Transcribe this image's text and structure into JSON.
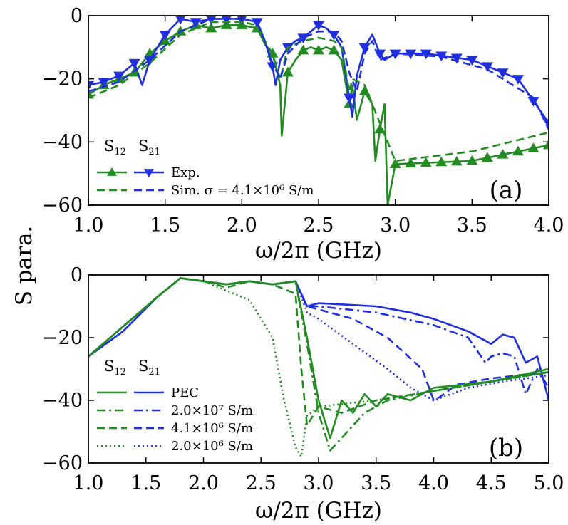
{
  "figure": {
    "ylabel": "S para.",
    "colors": {
      "s12": "#228B22",
      "s21": "#1f2fe0"
    }
  },
  "chart_data": [
    {
      "type": "line",
      "panel": "(a)",
      "xlabel": "ω/2π (GHz)",
      "xlim": [
        1.0,
        4.0
      ],
      "ylim": [
        -60,
        0
      ],
      "xticks": [
        "1.0",
        "1.5",
        "2.0",
        "2.5",
        "3.0",
        "3.5",
        "4.0"
      ],
      "yticks": [
        "0",
        "−20",
        "−40",
        "−60"
      ],
      "legend": {
        "col1": "S12",
        "col2": "S21",
        "rows": [
          {
            "label": "Exp.",
            "style": "solid-marker"
          },
          {
            "label": "Sim.  σ = 4.1×10⁶ S/m",
            "style": "dashed"
          }
        ]
      },
      "series": [
        {
          "name": "Exp.",
          "param": "S12",
          "color": "#228B22",
          "dash": "solid",
          "marker": "triangle-up",
          "x": [
            1.0,
            1.1,
            1.2,
            1.3,
            1.4,
            1.5,
            1.6,
            1.7,
            1.8,
            1.9,
            2.0,
            2.1,
            2.15,
            2.2,
            2.23,
            2.25,
            2.26,
            2.3,
            2.35,
            2.4,
            2.45,
            2.5,
            2.55,
            2.6,
            2.65,
            2.7,
            2.72,
            2.75,
            2.8,
            2.85,
            2.87,
            2.9,
            2.93,
            2.95,
            3.0,
            3.5,
            4.0
          ],
          "y": [
            -25,
            -22,
            -20,
            -18,
            -12,
            -8,
            -5,
            -3,
            -4,
            -3,
            -3,
            -4,
            -9,
            -12,
            -18,
            -22,
            -38,
            -18,
            -14,
            -11,
            -10,
            -11,
            -10,
            -11,
            -14,
            -28,
            -22,
            -33,
            -24,
            -28,
            -46,
            -36,
            -28,
            -60,
            -47,
            -46,
            -41
          ],
          "marker_x": [
            1.0,
            1.1,
            1.2,
            1.3,
            1.4,
            1.5,
            1.6,
            1.7,
            1.8,
            1.9,
            2.0,
            2.1,
            2.2,
            2.3,
            2.4,
            2.5,
            2.6,
            2.7,
            2.8,
            2.9,
            3.0,
            3.1,
            3.2,
            3.3,
            3.4,
            3.5,
            3.6,
            3.7,
            3.8,
            3.9,
            4.0
          ]
        },
        {
          "name": "Exp.",
          "param": "S21",
          "color": "#1f2fe0",
          "dash": "solid",
          "marker": "triangle-down",
          "x": [
            1.0,
            1.1,
            1.2,
            1.3,
            1.35,
            1.4,
            1.5,
            1.6,
            1.7,
            1.8,
            1.9,
            2.0,
            2.1,
            2.15,
            2.2,
            2.22,
            2.25,
            2.3,
            2.35,
            2.4,
            2.45,
            2.5,
            2.55,
            2.6,
            2.65,
            2.7,
            2.72,
            2.75,
            2.8,
            2.85,
            2.9,
            2.93,
            3.0,
            3.2,
            3.5,
            3.8,
            4.0
          ],
          "y": [
            -22,
            -21,
            -19,
            -15,
            -22,
            -14,
            -6,
            -1,
            -2,
            -1,
            -1,
            -1,
            -2,
            -8,
            -16,
            -22,
            -14,
            -10,
            -8,
            -7,
            -5,
            -3,
            -4,
            -6,
            -10,
            -26,
            -32,
            -19,
            -10,
            -6,
            -12,
            -14,
            -12,
            -12,
            -14,
            -20,
            -34
          ],
          "marker_x": [
            1.0,
            1.1,
            1.2,
            1.3,
            1.4,
            1.5,
            1.6,
            1.7,
            1.8,
            1.9,
            2.0,
            2.1,
            2.2,
            2.3,
            2.4,
            2.5,
            2.6,
            2.7,
            2.8,
            2.9,
            3.0,
            3.1,
            3.2,
            3.3,
            3.4,
            3.5,
            3.6,
            3.7,
            3.8,
            3.9,
            4.0
          ]
        },
        {
          "name": "Sim.",
          "param": "S12",
          "color": "#228B22",
          "dash": "dashed",
          "x": [
            1.0,
            1.2,
            1.4,
            1.6,
            1.8,
            2.0,
            2.1,
            2.15,
            2.2,
            2.25,
            2.3,
            2.4,
            2.5,
            2.6,
            2.65,
            2.7,
            2.72,
            2.8,
            2.85,
            2.9,
            2.95,
            3.0,
            3.5,
            4.0
          ],
          "y": [
            -26,
            -22,
            -15,
            -6,
            -2,
            -2,
            -3,
            -8,
            -12,
            -20,
            -10,
            -8,
            -7,
            -8,
            -10,
            -24,
            -20,
            -22,
            -28,
            -34,
            -40,
            -46,
            -43,
            -37
          ]
        },
        {
          "name": "Sim.",
          "param": "S21",
          "color": "#1f2fe0",
          "dash": "dashed",
          "x": [
            1.0,
            1.2,
            1.4,
            1.6,
            1.8,
            2.0,
            2.1,
            2.15,
            2.2,
            2.25,
            2.3,
            2.4,
            2.5,
            2.6,
            2.65,
            2.7,
            2.75,
            2.8,
            2.85,
            2.9,
            3.0,
            3.3,
            3.6,
            3.9,
            4.0
          ],
          "y": [
            -24,
            -21,
            -14,
            -5,
            -1,
            -1,
            -2,
            -8,
            -15,
            -20,
            -12,
            -7,
            -5,
            -5,
            -8,
            -18,
            -24,
            -12,
            -8,
            -14,
            -12,
            -13,
            -17,
            -26,
            -36
          ]
        }
      ]
    },
    {
      "type": "line",
      "panel": "(b)",
      "xlabel": "ω/2π (GHz)",
      "xlim": [
        1.0,
        5.0
      ],
      "ylim": [
        -60,
        0
      ],
      "xticks": [
        "1.0",
        "1.5",
        "2.0",
        "2.5",
        "3.0",
        "3.5",
        "4.0",
        "4.5",
        "5.0"
      ],
      "yticks": [
        "0",
        "−20",
        "−40",
        "−60"
      ],
      "legend": {
        "col1": "S12",
        "col2": "S21",
        "rows": [
          {
            "label": "PEC",
            "style": "solid"
          },
          {
            "label": "2.0×10⁷ S/m",
            "style": "dashdot"
          },
          {
            "label": "4.1×10⁶ S/m",
            "style": "dashed"
          },
          {
            "label": "2.0×10⁶ S/m",
            "style": "dotted"
          }
        ]
      },
      "series": [
        {
          "name": "PEC",
          "param": "S21",
          "color": "#1f2fe0",
          "dash": "solid",
          "x": [
            1.0,
            1.3,
            1.6,
            1.8,
            2.0,
            2.2,
            2.4,
            2.6,
            2.8,
            2.9,
            3.0,
            3.5,
            3.8,
            4.0,
            4.3,
            4.5,
            4.6,
            4.7,
            4.8,
            4.9,
            5.0
          ],
          "y": [
            -26,
            -18,
            -7,
            -1,
            -2,
            -3,
            -2,
            -3,
            -2,
            -10,
            -9,
            -10,
            -12,
            -14,
            -18,
            -22,
            -19,
            -20,
            -28,
            -26,
            -40
          ]
        },
        {
          "name": "2.0×10⁷ S/m",
          "param": "S21",
          "color": "#1f2fe0",
          "dash": "dashdot",
          "x": [
            1.0,
            1.6,
            1.8,
            2.0,
            2.2,
            2.4,
            2.6,
            2.8,
            2.9,
            3.0,
            3.5,
            4.0,
            4.3,
            4.45,
            4.5,
            4.6,
            4.7,
            4.8,
            4.9,
            5.0
          ],
          "y": [
            -26,
            -7,
            -1,
            -2,
            -3,
            -2,
            -3,
            -2,
            -10,
            -10,
            -12,
            -16,
            -20,
            -28,
            -26,
            -25,
            -26,
            -38,
            -30,
            -36
          ]
        },
        {
          "name": "4.1×10⁶ S/m",
          "param": "S21",
          "color": "#1f2fe0",
          "dash": "dashed",
          "x": [
            1.0,
            1.6,
            1.8,
            2.0,
            2.2,
            2.4,
            2.6,
            2.8,
            2.9,
            3.0,
            3.3,
            3.6,
            3.9,
            4.0,
            4.05,
            4.2,
            4.5,
            5.0
          ],
          "y": [
            -26,
            -7,
            -1,
            -2,
            -3,
            -2,
            -3,
            -2,
            -10,
            -11,
            -14,
            -20,
            -30,
            -40,
            -39,
            -35,
            -33,
            -31
          ]
        },
        {
          "name": "2.0×10⁶ S/m",
          "param": "S21",
          "color": "#1f2fe0",
          "dash": "dotted",
          "x": [
            1.0,
            1.6,
            1.8,
            2.0,
            2.2,
            2.4,
            2.6,
            2.8,
            2.9,
            3.0,
            3.3,
            3.6,
            3.8,
            4.0,
            4.3,
            4.6,
            5.0
          ],
          "y": [
            -26,
            -7,
            -1,
            -2,
            -3,
            -2,
            -3,
            -2,
            -12,
            -14,
            -22,
            -30,
            -36,
            -40,
            -36,
            -34,
            -32
          ]
        },
        {
          "name": "PEC",
          "param": "S12",
          "color": "#228B22",
          "dash": "solid",
          "x": [
            1.0,
            1.6,
            1.8,
            2.0,
            2.2,
            2.4,
            2.6,
            2.8,
            2.9,
            3.0,
            3.1,
            3.2,
            3.3,
            3.4,
            3.5,
            3.6,
            3.8,
            4.0,
            4.5,
            5.0
          ],
          "y": [
            -26,
            -7,
            -1,
            -2,
            -3,
            -2,
            -3,
            -2,
            -20,
            -40,
            -52,
            -40,
            -44,
            -38,
            -42,
            -38,
            -40,
            -36,
            -34,
            -30
          ]
        },
        {
          "name": "2.0×10⁷ S/m",
          "param": "S12",
          "color": "#228B22",
          "dash": "dashdot",
          "x": [
            1.0,
            1.6,
            1.8,
            2.0,
            2.2,
            2.4,
            2.6,
            2.8,
            2.9,
            3.0,
            3.1,
            3.25,
            3.4,
            3.6,
            4.0,
            4.5,
            5.0
          ],
          "y": [
            -26,
            -7,
            -1,
            -2,
            -3,
            -2,
            -3,
            -2,
            -22,
            -44,
            -56,
            -50,
            -44,
            -40,
            -37,
            -34,
            -31
          ]
        },
        {
          "name": "4.1×10⁶ S/m",
          "param": "S12",
          "color": "#228B22",
          "dash": "dashed",
          "x": [
            1.0,
            1.6,
            1.8,
            2.0,
            2.2,
            2.4,
            2.6,
            2.8,
            2.85,
            2.9,
            3.0,
            3.2,
            3.5,
            4.0,
            4.5,
            5.0
          ],
          "y": [
            -26,
            -7,
            -1,
            -2,
            -4,
            -2,
            -3,
            -6,
            -30,
            -48,
            -42,
            -44,
            -40,
            -37,
            -34,
            -31
          ]
        },
        {
          "name": "2.0×10⁶ S/m",
          "param": "S12",
          "color": "#228B22",
          "dash": "dotted",
          "x": [
            1.0,
            1.6,
            1.8,
            2.0,
            2.2,
            2.4,
            2.6,
            2.7,
            2.8,
            2.85,
            2.9,
            3.0,
            3.5,
            4.0,
            4.5,
            5.0
          ],
          "y": [
            -26,
            -7,
            -1,
            -2,
            -5,
            -8,
            -20,
            -40,
            -55,
            -58,
            -45,
            -42,
            -40,
            -37,
            -34,
            -31
          ]
        }
      ]
    }
  ]
}
